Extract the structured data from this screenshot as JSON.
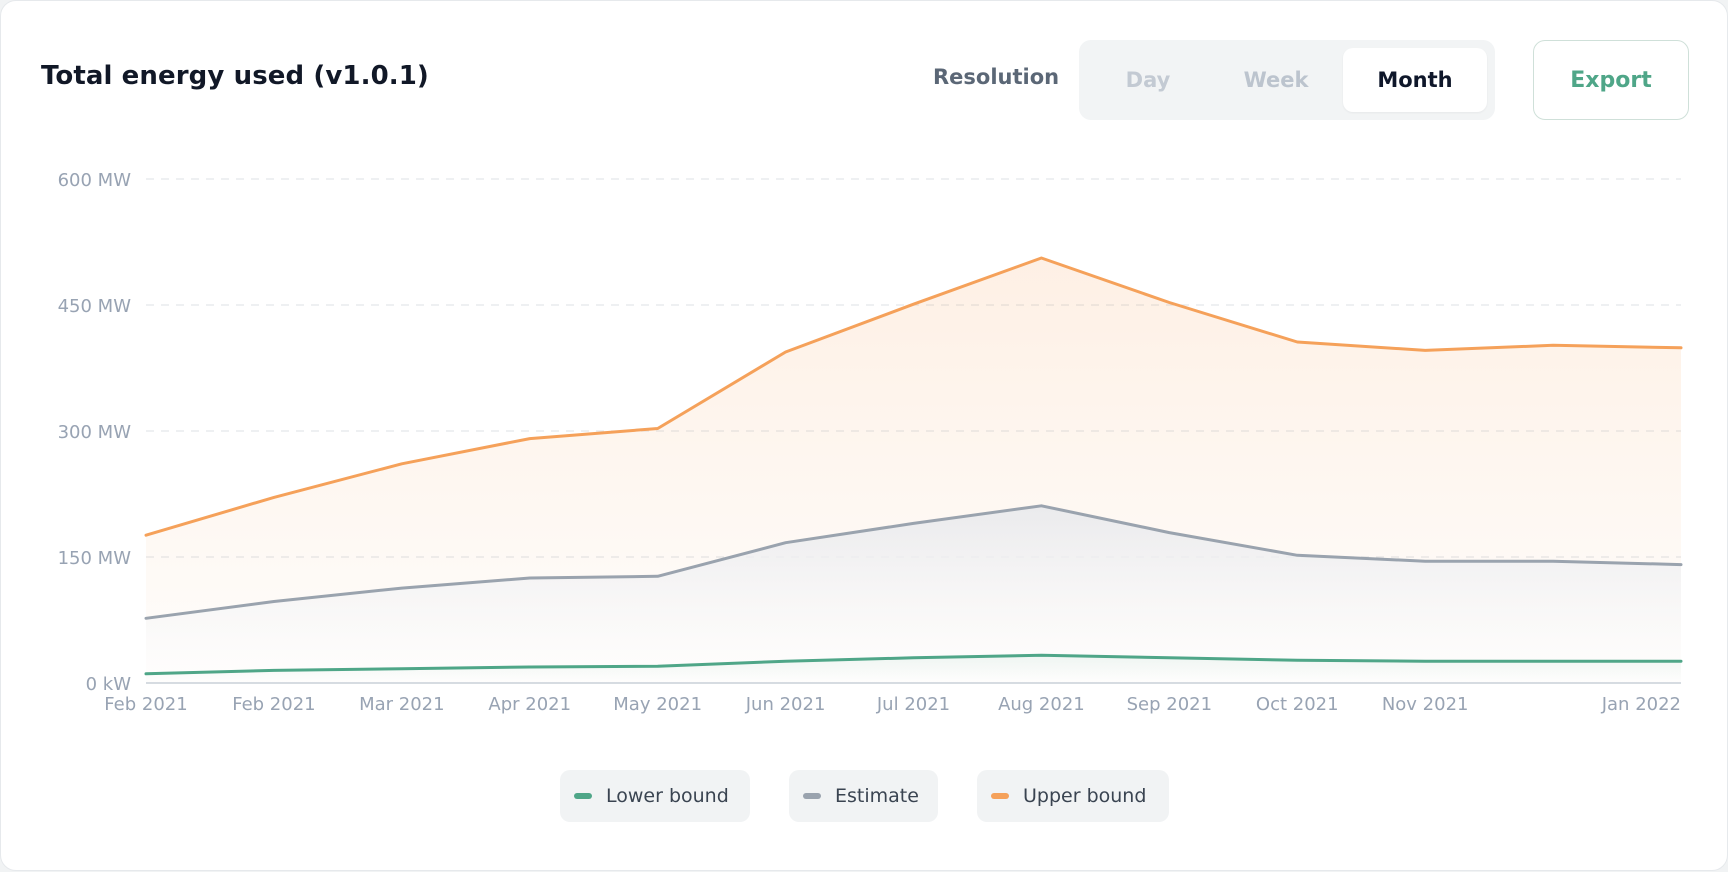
{
  "title": "Total energy used (v1.0.1)",
  "controls": {
    "resolution_label": "Resolution",
    "options": [
      "Day",
      "Week",
      "Month"
    ],
    "selected": "Month",
    "export_label": "Export"
  },
  "colors": {
    "lower": "#4fa688",
    "estimate": "#9aa3ae",
    "upper": "#f5a15a",
    "grid": "#e3e7eb",
    "tick": "#98a3b3"
  },
  "legend": [
    {
      "name": "Lower bound",
      "color": "#4fa688"
    },
    {
      "name": "Estimate",
      "color": "#9aa3ae"
    },
    {
      "name": "Upper bound",
      "color": "#f5a15a"
    }
  ],
  "chart_data": {
    "type": "area",
    "title": "Total energy used (v1.0.1)",
    "x_labels": [
      "Feb 2021",
      "Feb 2021",
      "Mar 2021",
      "Apr 2021",
      "May 2021",
      "Jun 2021",
      "Jul 2021",
      "Aug 2021",
      "Sep 2021",
      "Oct 2021",
      "Nov 2021",
      "",
      "Jan 2022"
    ],
    "y_ticks": [
      {
        "value": 0,
        "label": "0 kW"
      },
      {
        "value": 150,
        "label": "150 MW"
      },
      {
        "value": 300,
        "label": "300 MW"
      },
      {
        "value": 450,
        "label": "450 MW"
      },
      {
        "value": 600,
        "label": "600 MW"
      }
    ],
    "ylim": [
      0,
      600
    ],
    "unit": "MW",
    "series": [
      {
        "name": "Upper bound",
        "values": [
          176,
          221,
          261,
          291,
          303,
          394,
          451,
          506,
          453,
          406,
          396,
          402,
          399
        ]
      },
      {
        "name": "Estimate",
        "values": [
          77,
          97,
          113,
          125,
          127,
          167,
          190,
          211,
          179,
          152,
          145,
          145,
          141
        ]
      },
      {
        "name": "Lower bound",
        "values": [
          11,
          15,
          17,
          19,
          20,
          26,
          30,
          33,
          30,
          27,
          26,
          26,
          26
        ]
      }
    ],
    "grid": true,
    "legend_position": "bottom-center"
  }
}
